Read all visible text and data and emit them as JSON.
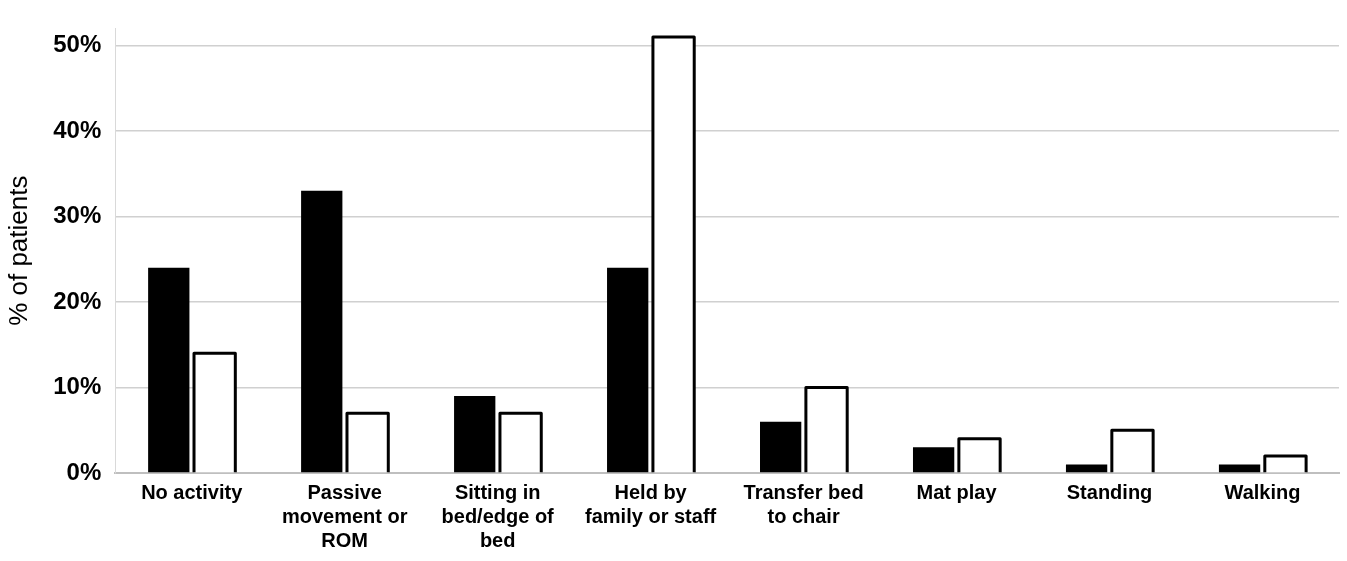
{
  "chart_data": {
    "type": "bar",
    "ylabel": "% of patients",
    "categories": [
      "No activity",
      "Passive movement or ROM",
      "Sitting in bed/edge of bed",
      "Held by family or staff",
      "Transfer bed to chair",
      "Mat play",
      "Standing",
      "Walking"
    ],
    "series": [
      {
        "color": "#000000",
        "values": [
          24,
          33,
          9,
          24,
          6,
          3,
          1,
          1
        ]
      },
      {
        "color": "#ffffff",
        "values": [
          14,
          7,
          7,
          51,
          10,
          4,
          5,
          2
        ]
      }
    ],
    "ylim": [
      0,
      52
    ],
    "yticks": [
      {
        "value": 0,
        "label": "0%"
      },
      {
        "value": 10,
        "label": "10%"
      },
      {
        "value": 20,
        "label": "20%"
      },
      {
        "value": 30,
        "label": "30%"
      },
      {
        "value": 40,
        "label": "40%"
      },
      {
        "value": 50,
        "label": "50%"
      }
    ],
    "grid": "y",
    "legend": false
  }
}
